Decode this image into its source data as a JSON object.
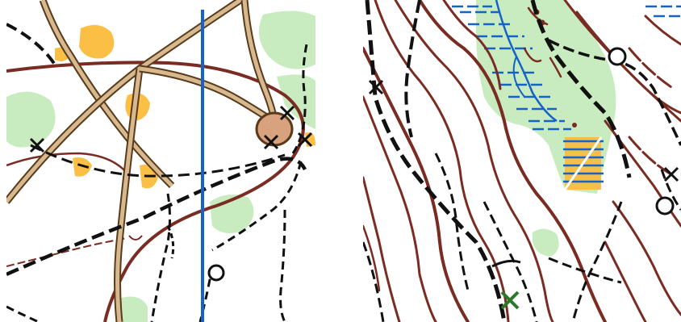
{
  "maps": [
    {
      "id": "left",
      "kind": "orienteering-map-excerpt",
      "colors": {
        "vegetation_green": "#c8ecbf",
        "rough_open_yellow": "#fbbf45",
        "brown_contour": "#7a2b22",
        "road_fill": "#d6b98e",
        "track_black": "#111111",
        "water_blue": "#1562c9",
        "clearing_fill": "#d9a27e"
      },
      "symbols": [
        "vegetation-patch",
        "rough-open-land",
        "contour-line",
        "road",
        "dashed-path",
        "magnetic-north-line",
        "crossing",
        "small-knoll",
        "clearing"
      ]
    },
    {
      "id": "right",
      "kind": "orienteering-map-excerpt",
      "colors": {
        "vegetation_green": "#c8ecbf",
        "marsh_blue": "#1562c9",
        "brown_contour": "#7a2b22",
        "track_black": "#111111",
        "marker_green": "#2a7a2a",
        "yellow_stripe": "#f4c04a"
      },
      "symbols": [
        "contour-line",
        "vegetation-patch",
        "marsh",
        "stream",
        "dashed-path",
        "small-knoll",
        "green-cross-marker"
      ]
    }
  ]
}
